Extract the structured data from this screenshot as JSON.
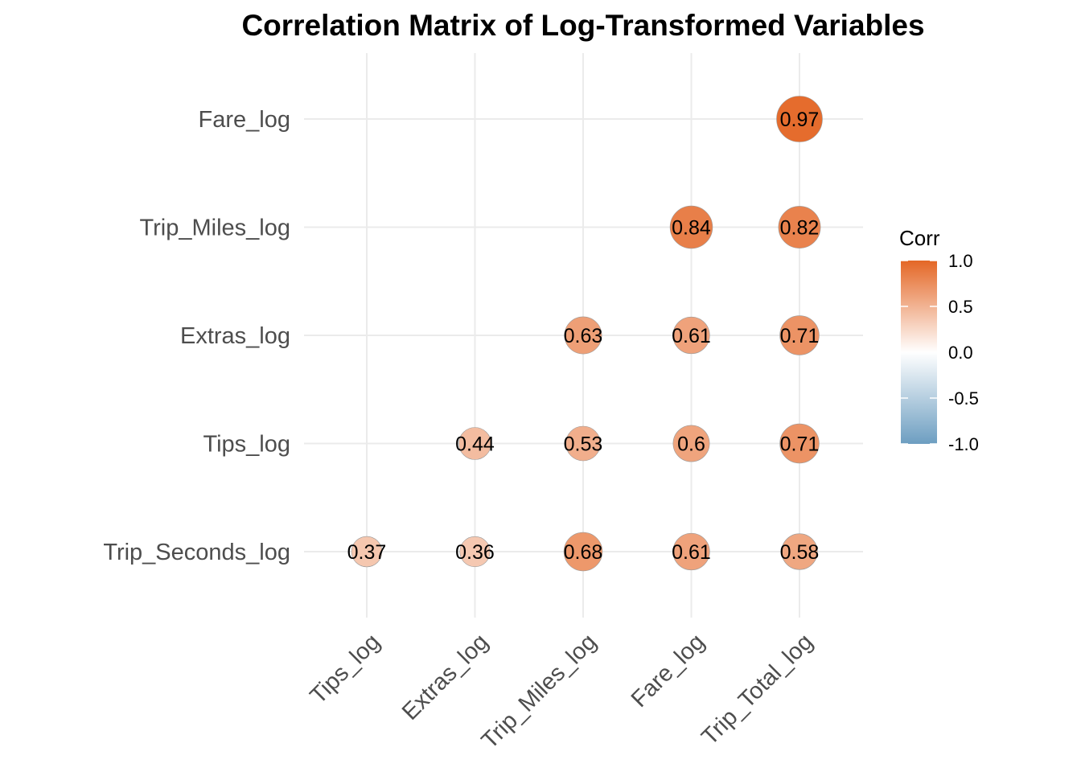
{
  "chart_data": {
    "type": "scatter",
    "title": "Correlation Matrix of Log-Transformed Variables",
    "x_categories": [
      "Tips_log",
      "Extras_log",
      "Trip_Miles_log",
      "Fare_log",
      "Trip_Total_log"
    ],
    "y_categories": [
      "Trip_Seconds_log",
      "Tips_log",
      "Extras_log",
      "Trip_Miles_log",
      "Fare_log"
    ],
    "cells": [
      {
        "x": "Tips_log",
        "y": "Trip_Seconds_log",
        "value": 0.37,
        "label": "0.37"
      },
      {
        "x": "Extras_log",
        "y": "Trip_Seconds_log",
        "value": 0.36,
        "label": "0.36"
      },
      {
        "x": "Trip_Miles_log",
        "y": "Trip_Seconds_log",
        "value": 0.68,
        "label": "0.68"
      },
      {
        "x": "Fare_log",
        "y": "Trip_Seconds_log",
        "value": 0.61,
        "label": "0.61"
      },
      {
        "x": "Trip_Total_log",
        "y": "Trip_Seconds_log",
        "value": 0.58,
        "label": "0.58"
      },
      {
        "x": "Extras_log",
        "y": "Tips_log",
        "value": 0.44,
        "label": "0.44"
      },
      {
        "x": "Trip_Miles_log",
        "y": "Tips_log",
        "value": 0.53,
        "label": "0.53"
      },
      {
        "x": "Fare_log",
        "y": "Tips_log",
        "value": 0.6,
        "label": "0.6"
      },
      {
        "x": "Trip_Total_log",
        "y": "Tips_log",
        "value": 0.71,
        "label": "0.71"
      },
      {
        "x": "Trip_Miles_log",
        "y": "Extras_log",
        "value": 0.63,
        "label": "0.63"
      },
      {
        "x": "Fare_log",
        "y": "Extras_log",
        "value": 0.61,
        "label": "0.61"
      },
      {
        "x": "Trip_Total_log",
        "y": "Extras_log",
        "value": 0.71,
        "label": "0.71"
      },
      {
        "x": "Fare_log",
        "y": "Trip_Miles_log",
        "value": 0.84,
        "label": "0.84"
      },
      {
        "x": "Trip_Total_log",
        "y": "Trip_Miles_log",
        "value": 0.82,
        "label": "0.82"
      },
      {
        "x": "Trip_Total_log",
        "y": "Fare_log",
        "value": 0.97,
        "label": "0.97"
      }
    ],
    "legend": {
      "title": "Corr",
      "ticks": [
        "1.0",
        "0.5",
        "0.0",
        "-0.5",
        "-1.0"
      ],
      "range": [
        -1,
        1
      ],
      "colors": {
        "low": "#6d9ec1",
        "mid": "#ffffff",
        "high": "#e46726"
      },
      "placement": "right"
    },
    "grid": true
  }
}
